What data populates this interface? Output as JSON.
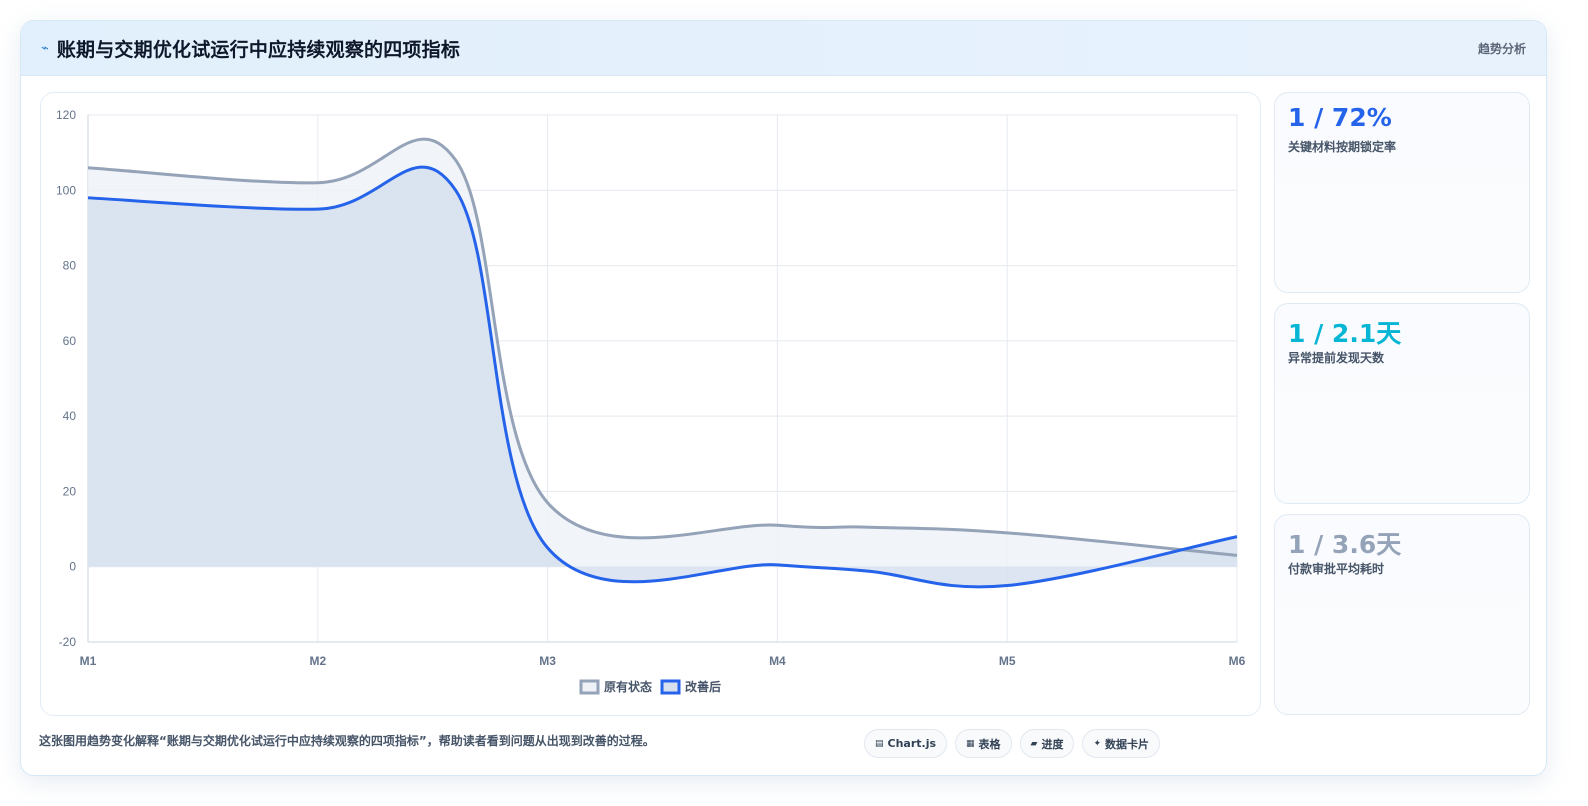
{
  "header": {
    "icon": "trend-icon",
    "title": "账期与交期优化试运行中应持续观察的四项指标",
    "tag": "趋势分析"
  },
  "kpis": [
    {
      "value": "1 / 72%",
      "label": "关键材料按期锁定率",
      "color": "#2563eb"
    },
    {
      "value": "1 / 2.1天",
      "label": "异常提前发现天数",
      "color": "#06b6d4"
    },
    {
      "value": "1 / 3.6天",
      "label": "付款审批平均耗时",
      "color": "#94a3b8"
    }
  ],
  "caption": "这张图用趋势变化解释“账期与交期优化试运行中应持续观察的四项指标”，帮助读者看到问题从出现到改善的过程。",
  "chips": [
    {
      "icon": "chart-icon",
      "glyph": "▤",
      "label": "Chart.js"
    },
    {
      "icon": "table-icon",
      "glyph": "▦",
      "label": "表格"
    },
    {
      "icon": "progress-icon",
      "glyph": "▰",
      "label": "进度"
    },
    {
      "icon": "sparkle-icon",
      "glyph": "✦",
      "label": "数据卡片"
    }
  ],
  "chart_data": {
    "type": "area",
    "categories": [
      "M1",
      "M2",
      "M3",
      "M4",
      "M5",
      "M6"
    ],
    "series": [
      {
        "name": "原有状态",
        "values": [
          106,
          102,
          17,
          11,
          9,
          3
        ],
        "peak": [
          1.6,
          108
        ],
        "dip": [
          3.4,
          10.5
        ],
        "color": "#94a3b8",
        "fill": "#eef2f7"
      },
      {
        "name": "改善后",
        "values": [
          98,
          95,
          5,
          0.5,
          -5,
          8
        ],
        "peak": [
          1.6,
          100
        ],
        "dip": [
          3.4,
          -1.2
        ],
        "color": "#2563eb",
        "fill": "#d6e0ef"
      }
    ],
    "ylim": [
      -20,
      120
    ],
    "yticks": [
      -20,
      0,
      20,
      40,
      60,
      80,
      100,
      120
    ],
    "grid": true,
    "legend": "bottom-center"
  }
}
